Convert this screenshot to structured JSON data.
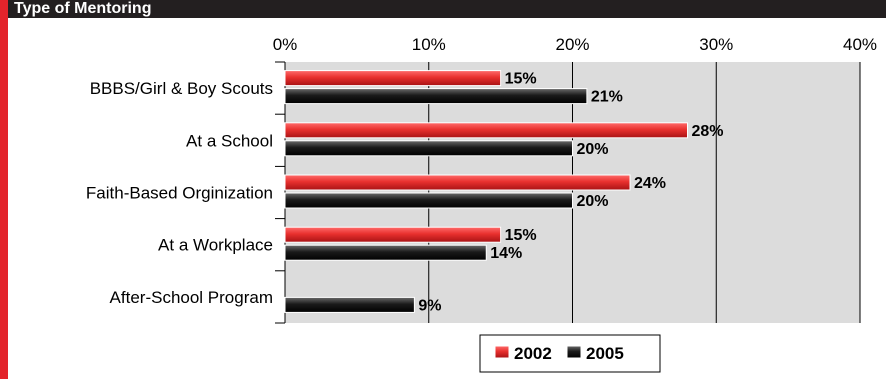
{
  "header": {
    "title": "Type of Mentoring"
  },
  "colors": {
    "header_bg": "#231f20",
    "accent_bar": "#e3242b",
    "plot_bg": "#dcdcdc",
    "grid": "#000000",
    "series_2002": "#e8302e",
    "series_2005": "#1a1a1a"
  },
  "chart_data": {
    "type": "bar",
    "orientation": "horizontal",
    "categories": [
      "BBBS/Girl & Boy Scouts",
      "At a School",
      "Faith-Based Orginization",
      "At a Workplace",
      "After-School Program"
    ],
    "series": [
      {
        "name": "2002",
        "values": [
          15,
          28,
          24,
          15,
          null
        ],
        "labels": [
          "15%",
          "28%",
          "24%",
          "15%",
          ""
        ]
      },
      {
        "name": "2005",
        "values": [
          21,
          20,
          20,
          14,
          9
        ],
        "labels": [
          "21%",
          "20%",
          "20%",
          "14%",
          "9%"
        ]
      }
    ],
    "xlim": [
      0,
      40
    ],
    "ticks": [
      0,
      10,
      20,
      30,
      40
    ],
    "tick_labels": [
      "0%",
      "10%",
      "20%",
      "30%",
      "40%"
    ],
    "xlabel": "",
    "ylabel": "",
    "axis_position": "top",
    "grid": true,
    "legend": "bottom-center"
  }
}
